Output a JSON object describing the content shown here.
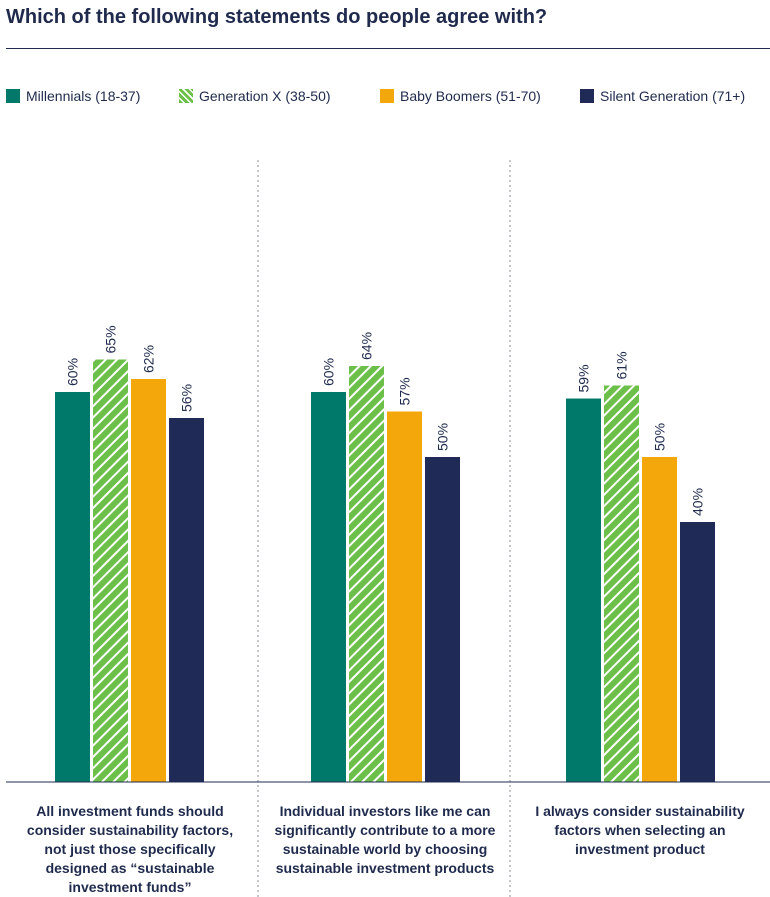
{
  "title": "Which of the following statements do people agree with?",
  "colors": {
    "millennials": "#00796b",
    "generation_x": "#6cc04a",
    "baby_boomers": "#f4a70b",
    "silent_generation": "#1f2a56",
    "text": "#1f2a4d"
  },
  "legend": [
    {
      "name": "Millennials (18-37)",
      "color": "#00796b",
      "pattern": "solid"
    },
    {
      "name": "Generation X (38-50)",
      "color": "#6cc04a",
      "pattern": "hatched"
    },
    {
      "name": "Baby Boomers (51-70)",
      "color": "#f4a70b",
      "pattern": "solid"
    },
    {
      "name": "Silent Generation (71+)",
      "color": "#1f2a56",
      "pattern": "solid"
    }
  ],
  "chart_data": {
    "type": "bar",
    "title": "Which of the following statements do people agree with?",
    "categories": [
      "All investment funds should consider sustainability factors, not just those specifically designed as “sustainable investment funds”",
      "Individual investors like me can significantly contribute to a more sustainable world by choosing sustainable investment products",
      "I always consider sustainability factors when selecting an investment product"
    ],
    "series": [
      {
        "name": "Millennials (18-37)",
        "values": [
          60,
          60,
          59
        ]
      },
      {
        "name": "Generation X (38-50)",
        "values": [
          65,
          64,
          61
        ]
      },
      {
        "name": "Baby Boomers (51-70)",
        "values": [
          62,
          57,
          50
        ]
      },
      {
        "name": "Silent Generation (71+)",
        "values": [
          56,
          50,
          40
        ]
      }
    ],
    "value_suffix": "%",
    "ylim": [
      0,
      100
    ],
    "grid": false,
    "legend_position": "top-left"
  }
}
